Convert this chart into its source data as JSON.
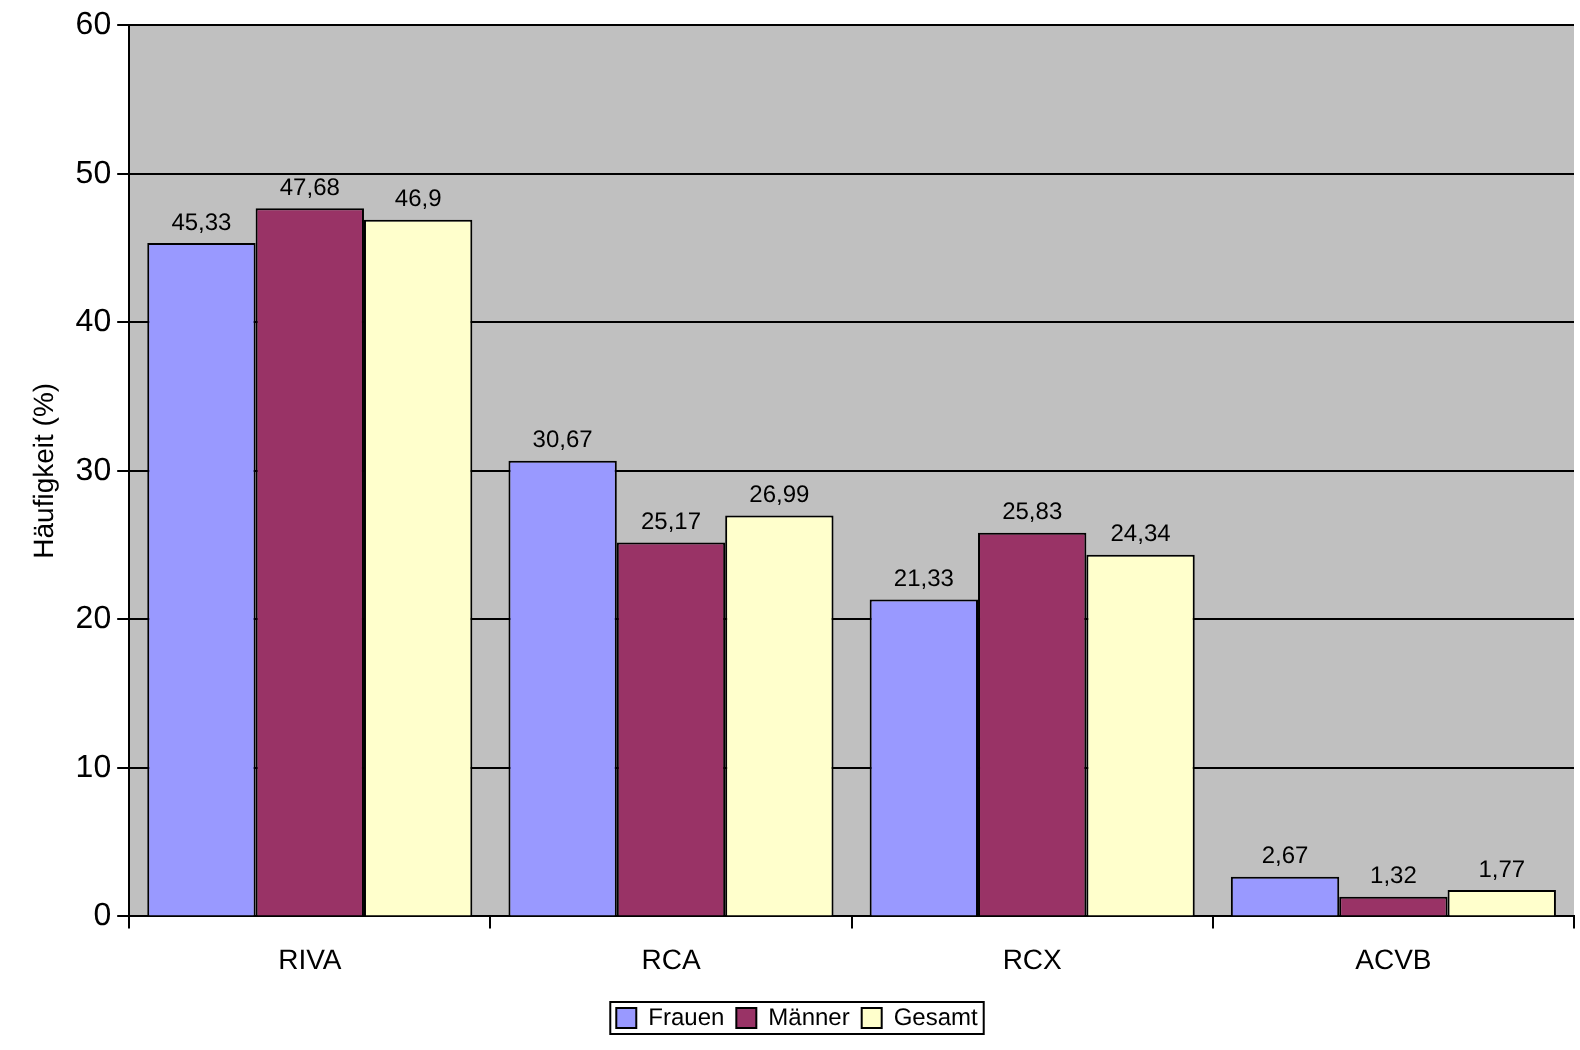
{
  "chart_data": {
    "type": "bar",
    "ylabel": "Häufigkeit (%)",
    "categories": [
      "RIVA",
      "RCA",
      "RCX",
      "ACVB"
    ],
    "series": [
      {
        "name": "Frauen",
        "color": "#9999ff",
        "values": [
          45.33,
          30.67,
          21.33,
          2.67
        ],
        "value_labels": [
          "45,33",
          "30,67",
          "21,33",
          "2,67"
        ]
      },
      {
        "name": "Männer",
        "color": "#993366",
        "values": [
          47.68,
          25.17,
          25.83,
          1.32
        ],
        "value_labels": [
          "47,68",
          "25,17",
          "25,83",
          "1,32"
        ]
      },
      {
        "name": "Gesamt",
        "color": "#ffffcc",
        "values": [
          46.9,
          26.99,
          24.34,
          1.77
        ],
        "value_labels": [
          "46,9",
          "26,99",
          "24,34",
          "1,77"
        ]
      }
    ],
    "ylim": [
      0,
      60
    ],
    "yticks": [
      0,
      10,
      20,
      30,
      40,
      50,
      60
    ],
    "grid": "y",
    "legend": "bottom"
  }
}
